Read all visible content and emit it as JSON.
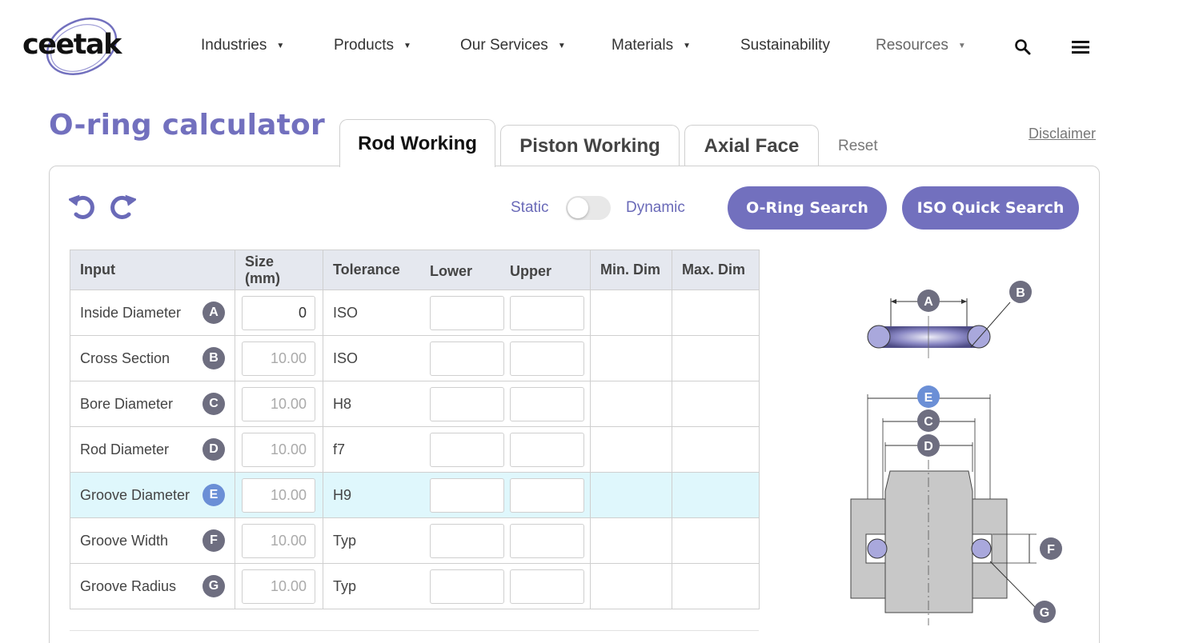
{
  "brand": {
    "logo_text": "ceetak",
    "accent_color": "#7270be"
  },
  "nav": {
    "items": [
      {
        "label": "Industries",
        "caret": "▼"
      },
      {
        "label": "Products",
        "caret": "▼"
      },
      {
        "label": "Our Services",
        "caret": "▼"
      },
      {
        "label": "Materials",
        "caret": "▼"
      },
      {
        "label": "Sustainability"
      },
      {
        "label": "Resources",
        "caret": "▼"
      }
    ],
    "icons": [
      "search-icon",
      "hamburger-menu-icon"
    ]
  },
  "page": {
    "title": "O-ring calculator",
    "tabs": [
      {
        "label": "Rod Working",
        "active": true
      },
      {
        "label": "Piston Working",
        "active": false
      },
      {
        "label": "Axial Face",
        "active": false
      }
    ],
    "reset_label": "Reset",
    "disclaimer_label": "Disclaimer"
  },
  "toolbar": {
    "undo_icon": "undo-icon",
    "redo_icon": "redo-icon",
    "static_label": "Static",
    "dynamic_label": "Dynamic",
    "mode_dynamic_on": false,
    "oring_search_label": "O-Ring Search",
    "iso_quick_search_label": "ISO Quick Search"
  },
  "table": {
    "headers": {
      "input": "Input",
      "size": "Size (mm)",
      "tolerance": "Tolerance",
      "lower": "Lower",
      "upper": "Upper",
      "min_dim": "Min. Dim",
      "max_dim": "Max. Dim"
    },
    "rows": [
      {
        "label": "Inside Diameter",
        "badge": "A",
        "size": "0",
        "tolerance": "ISO"
      },
      {
        "label": "Cross Section",
        "badge": "B",
        "size": "10.00",
        "tolerance": "ISO"
      },
      {
        "label": "Bore Diameter",
        "badge": "C",
        "size": "10.00",
        "tolerance": "H8"
      },
      {
        "label": "Rod Diameter",
        "badge": "D",
        "size": "10.00",
        "tolerance": "f7"
      },
      {
        "label": "Groove Diameter",
        "badge": "E",
        "size": "10.00",
        "tolerance": "H9",
        "highlighted": true
      },
      {
        "label": "Groove Width",
        "badge": "F",
        "size": "10.00",
        "tolerance": "Typ"
      },
      {
        "label": "Groove Radius",
        "badge": "G",
        "size": "10.00",
        "tolerance": "Typ"
      }
    ]
  },
  "diagram": {
    "labels": {
      "a": "A",
      "b": "B",
      "c": "C",
      "d": "D",
      "e": "E",
      "f": "F",
      "g": "G"
    }
  }
}
